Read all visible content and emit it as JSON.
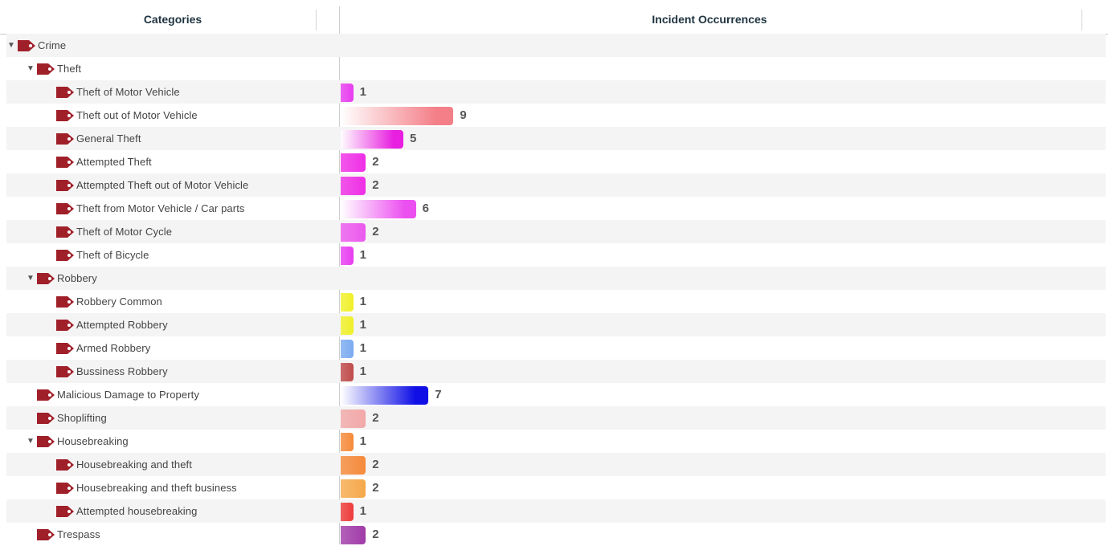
{
  "header": {
    "categories_label": "Categories",
    "occurrences_label": "Incident Occurrences"
  },
  "rows": [
    {
      "label": "Crime",
      "level": 0,
      "expandable": true,
      "value": null
    },
    {
      "label": "Theft",
      "level": 1,
      "expandable": true,
      "value": null
    },
    {
      "label": "Theft of Motor Vehicle",
      "level": 2,
      "expandable": false,
      "value": 1,
      "color": "#e83cf0"
    },
    {
      "label": "Theft out of Motor Vehicle",
      "level": 2,
      "expandable": false,
      "value": 9,
      "color": "#f47f88"
    },
    {
      "label": "General Theft",
      "level": 2,
      "expandable": false,
      "value": 5,
      "color": "#e81ee0"
    },
    {
      "label": "Attempted Theft",
      "level": 2,
      "expandable": false,
      "value": 2,
      "color": "#ef2ee6"
    },
    {
      "label": "Attempted Theft out of Motor Vehicle",
      "level": 2,
      "expandable": false,
      "value": 2,
      "color": "#ef2ee6"
    },
    {
      "label": "Theft from Motor Vehicle / Car parts",
      "level": 2,
      "expandable": false,
      "value": 6,
      "color": "#ec4ff0"
    },
    {
      "label": "Theft of Motor Cycle",
      "level": 2,
      "expandable": false,
      "value": 2,
      "color": "#ec59ee"
    },
    {
      "label": "Theft of Bicycle",
      "level": 2,
      "expandable": false,
      "value": 1,
      "color": "#e83cf0"
    },
    {
      "label": "Robbery",
      "level": 1,
      "expandable": true,
      "value": null
    },
    {
      "label": "Robbery Common",
      "level": 2,
      "expandable": false,
      "value": 1,
      "color": "#f0f02a"
    },
    {
      "label": "Attempted Robbery",
      "level": 2,
      "expandable": false,
      "value": 1,
      "color": "#f0f02a"
    },
    {
      "label": "Armed Robbery",
      "level": 2,
      "expandable": false,
      "value": 1,
      "color": "#7aaaf0"
    },
    {
      "label": "Bussiness Robbery",
      "level": 2,
      "expandable": false,
      "value": 1,
      "color": "#c04a4a"
    },
    {
      "label": "Malicious Damage to Property",
      "level": 1,
      "expandable": false,
      "value": 7,
      "color": "#1010e6"
    },
    {
      "label": "Shoplifting",
      "level": 1,
      "expandable": false,
      "value": 2,
      "color": "#f2a8a8"
    },
    {
      "label": "Housebreaking",
      "level": 1,
      "expandable": true,
      "value": 1,
      "color": "#f58a3a"
    },
    {
      "label": "Housebreaking and theft",
      "level": 2,
      "expandable": false,
      "value": 2,
      "color": "#f58a3a"
    },
    {
      "label": "Housebreaking and theft business",
      "level": 2,
      "expandable": false,
      "value": 2,
      "color": "#f5a84a"
    },
    {
      "label": "Attempted housebreaking",
      "level": 2,
      "expandable": false,
      "value": 1,
      "color": "#ee3a3a"
    },
    {
      "label": "Trespass",
      "level": 1,
      "expandable": false,
      "value": 2,
      "color": "#a03aa8"
    }
  ],
  "icons": {
    "expanded": "triangle-down-icon",
    "tag": "tag-icon",
    "tag_color": "#a0202a"
  }
}
